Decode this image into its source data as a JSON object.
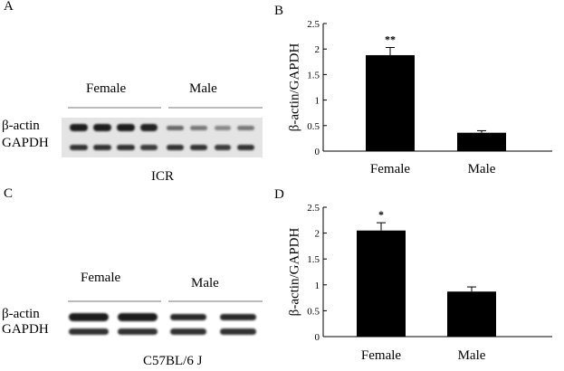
{
  "panels": {
    "A": {
      "letter": "A",
      "group_labels": [
        "Female",
        "Male"
      ],
      "row_labels": [
        "β-actin",
        "GAPDH"
      ],
      "strain": "ICR"
    },
    "C": {
      "letter": "C",
      "group_labels": [
        "Female",
        "Male"
      ],
      "row_labels": [
        "β-actin",
        "GAPDH"
      ],
      "strain": "C57BL/6 J"
    }
  },
  "chart_data": [
    {
      "panel": "B",
      "type": "bar",
      "categories": [
        "Female",
        "Male"
      ],
      "values": [
        1.88,
        0.36
      ],
      "errors": [
        0.15,
        0.04
      ],
      "annotations": [
        "**",
        ""
      ],
      "title": "",
      "xlabel": "",
      "ylabel": "β-actin/GAPDH",
      "ylim": [
        0,
        2.5
      ],
      "yticks": [
        0,
        0.5,
        1,
        1.5,
        2,
        2.5
      ],
      "ytick_labels": [
        "0",
        "0.5",
        "1",
        "1.5",
        "2",
        "2.5"
      ],
      "bar_color": "#000000",
      "grid": false,
      "legend": "none"
    },
    {
      "panel": "D",
      "type": "bar",
      "categories": [
        "Female",
        "Male"
      ],
      "values": [
        2.05,
        0.87
      ],
      "errors": [
        0.15,
        0.09
      ],
      "annotations": [
        "*",
        ""
      ],
      "title": "",
      "xlabel": "",
      "ylabel": "β-actin/GAPDH",
      "ylim": [
        0,
        2.5
      ],
      "yticks": [
        0,
        0.5,
        1,
        1.5,
        2,
        2.5
      ],
      "ytick_labels": [
        "0",
        "0.5",
        "1",
        "1.5",
        "2",
        "2.5"
      ],
      "bar_color": "#000000",
      "grid": false,
      "legend": "none"
    }
  ]
}
